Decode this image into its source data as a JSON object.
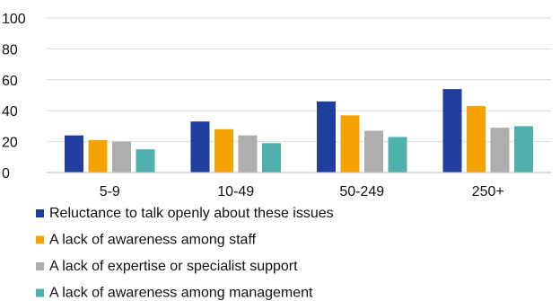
{
  "chart_data": {
    "type": "bar",
    "title": "",
    "xlabel": "",
    "ylabel": "",
    "ylim": [
      0,
      100
    ],
    "yticks": [
      0,
      20,
      40,
      60,
      80,
      100
    ],
    "grid": "horizontal",
    "legend_position": "bottom",
    "categories": [
      "5-9",
      "10-49",
      "50-249",
      "250+"
    ],
    "series": [
      {
        "name": "Reluctance to talk openly about these issues",
        "color": "#1f3e9e",
        "values": [
          24,
          33,
          46,
          54
        ]
      },
      {
        "name": "A lack of awareness among staff",
        "color": "#f5a300",
        "values": [
          21,
          28,
          37,
          43
        ]
      },
      {
        "name": "A lack of expertise or specialist support",
        "color": "#aeaeae",
        "values": [
          20,
          24,
          27,
          29
        ]
      },
      {
        "name": "A lack of awareness among management",
        "color": "#4fb0ae",
        "values": [
          15,
          19,
          23,
          30
        ]
      }
    ]
  }
}
